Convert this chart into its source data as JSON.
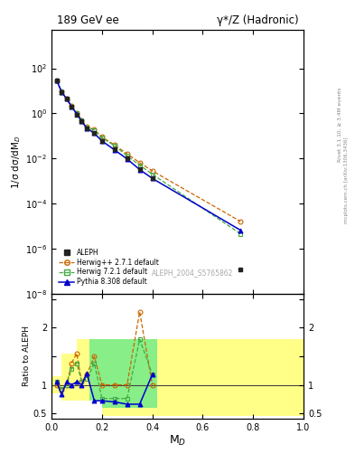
{
  "title_left": "189 GeV ee",
  "title_right": "γ*/Z (Hadronic)",
  "ylabel_main": "1/σ dσ/dM$_D$",
  "ylabel_ratio": "Ratio to ALEPH",
  "xlabel": "M$_D$",
  "rivet_label": "Rivet 3.1.10, ≥ 3.4M events",
  "arxiv_label": "mcplots.cern.ch [arXiv:1306.3436]",
  "dataset_label": "ALEPH_2004_S5765862",
  "aleph_x": [
    0.02,
    0.04,
    0.06,
    0.08,
    0.1,
    0.12,
    0.14,
    0.17,
    0.2,
    0.25,
    0.3,
    0.35,
    0.4,
    0.75
  ],
  "aleph_y": [
    30.0,
    9.0,
    4.5,
    2.0,
    0.9,
    0.45,
    0.22,
    0.13,
    0.06,
    0.025,
    0.01,
    0.0035,
    0.0013,
    1.2e-07
  ],
  "aleph_yerr_lo": [
    3.0,
    0.9,
    0.45,
    0.2,
    0.09,
    0.045,
    0.022,
    0.013,
    0.006,
    0.0025,
    0.001,
    0.00035,
    0.00013,
    1.2e-08
  ],
  "aleph_yerr_hi": [
    3.0,
    0.9,
    0.45,
    0.2,
    0.09,
    0.045,
    0.022,
    0.013,
    0.006,
    0.0025,
    0.001,
    0.00035,
    0.00013,
    1.2e-08
  ],
  "herwig_pp_x": [
    0.02,
    0.04,
    0.06,
    0.08,
    0.1,
    0.12,
    0.14,
    0.17,
    0.2,
    0.25,
    0.3,
    0.35,
    0.4,
    0.75
  ],
  "herwig_pp_y": [
    30.0,
    9.5,
    4.6,
    2.1,
    1.05,
    0.5,
    0.26,
    0.19,
    0.09,
    0.04,
    0.016,
    0.0065,
    0.0028,
    1.6e-05
  ],
  "herwig7_x": [
    0.02,
    0.04,
    0.06,
    0.08,
    0.1,
    0.12,
    0.14,
    0.17,
    0.2,
    0.25,
    0.3,
    0.35,
    0.4,
    0.75
  ],
  "herwig7_y": [
    30.0,
    9.3,
    4.5,
    2.05,
    1.0,
    0.48,
    0.24,
    0.18,
    0.083,
    0.037,
    0.013,
    0.005,
    0.002,
    4.5e-06
  ],
  "pythia_x": [
    0.02,
    0.04,
    0.06,
    0.08,
    0.1,
    0.12,
    0.14,
    0.17,
    0.2,
    0.25,
    0.3,
    0.35,
    0.4,
    0.75
  ],
  "pythia_y": [
    30.0,
    9.0,
    4.4,
    2.0,
    0.95,
    0.44,
    0.22,
    0.13,
    0.06,
    0.024,
    0.0095,
    0.0032,
    0.0013,
    6.5e-06
  ],
  "ratio_x": [
    0.02,
    0.04,
    0.06,
    0.08,
    0.1,
    0.12,
    0.14,
    0.17,
    0.2,
    0.25,
    0.3,
    0.35,
    0.4,
    0.75
  ],
  "ratio_herwig_pp_y": [
    1.0,
    0.92,
    1.0,
    1.38,
    1.55,
    1.05,
    1.18,
    1.5,
    1.0,
    1.0,
    1.0,
    2.28,
    1.0,
    null
  ],
  "ratio_herwig7_y": [
    1.05,
    0.93,
    1.0,
    1.28,
    1.38,
    1.05,
    1.1,
    1.38,
    0.76,
    0.76,
    0.76,
    1.8,
    1.18,
    null
  ],
  "ratio_pythia_y": [
    1.05,
    0.83,
    1.05,
    1.0,
    1.05,
    1.0,
    1.2,
    0.72,
    0.72,
    0.7,
    0.66,
    0.66,
    1.18,
    null
  ],
  "band_yellow_x_steps": [
    0.0,
    0.04,
    0.1,
    0.15,
    0.2,
    0.35,
    1.0
  ],
  "band_yellow_lo_steps": [
    0.85,
    0.72,
    0.72,
    0.72,
    0.45,
    0.45,
    0.45
  ],
  "band_yellow_hi_steps": [
    1.15,
    1.55,
    1.8,
    1.8,
    1.8,
    1.8,
    1.8
  ],
  "band_green_x_steps": [
    0.15,
    0.2,
    0.25,
    0.35,
    0.42,
    0.42
  ],
  "band_green_lo_steps": [
    0.72,
    0.6,
    0.6,
    0.6,
    0.6,
    0.6
  ],
  "band_green_hi_steps": [
    1.8,
    1.8,
    1.8,
    1.8,
    1.8,
    1.8
  ],
  "color_aleph": "#222222",
  "color_herwig_pp": "#cc6600",
  "color_herwig7": "#44aa44",
  "color_pythia": "#0000cc",
  "color_yellow": "#ffff88",
  "color_green": "#88ee88",
  "xlim": [
    0.0,
    1.0
  ],
  "ylim_main": [
    1e-08,
    5000.0
  ],
  "ylim_ratio": [
    0.4,
    2.6
  ],
  "ratio_yticks": [
    0.5,
    1.0,
    1.5,
    2.0,
    2.5
  ],
  "ratio_yticklabels": [
    "0.5",
    "1",
    "",
    "2",
    ""
  ]
}
